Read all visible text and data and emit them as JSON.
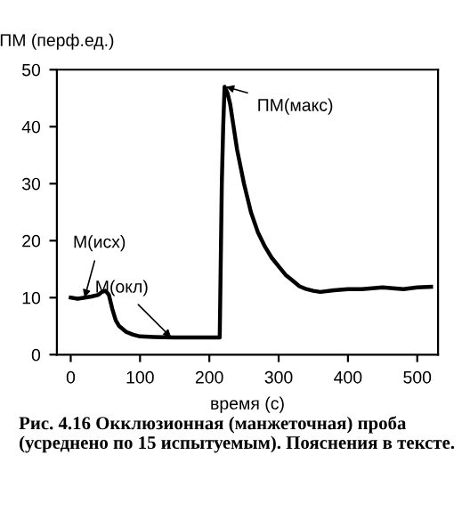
{
  "chart_data": {
    "type": "line",
    "xlabel": "время (с)",
    "ylabel": "ПМ (перф.ед.)",
    "x": [
      0,
      10,
      20,
      30,
      40,
      45,
      50,
      55,
      60,
      65,
      70,
      80,
      90,
      100,
      120,
      150,
      180,
      210,
      215,
      218,
      220,
      222,
      226,
      230,
      235,
      240,
      250,
      260,
      270,
      280,
      290,
      300,
      310,
      320,
      330,
      340,
      350,
      360,
      380,
      400,
      420,
      450,
      480,
      500,
      520
    ],
    "series": [
      {
        "color": "#000000",
        "values": [
          10,
          9.8,
          10,
          10.2,
          10.5,
          11,
          11.2,
          10.5,
          8,
          6,
          5,
          4,
          3.5,
          3.2,
          3.1,
          3,
          3,
          3,
          3,
          30,
          40,
          47,
          46,
          44,
          40,
          36,
          30,
          25,
          21.5,
          19,
          17,
          15.5,
          14,
          13,
          12,
          11.5,
          11.2,
          11,
          11.3,
          11.5,
          11.5,
          11.8,
          11.5,
          11.8,
          11.9
        ]
      }
    ],
    "xlim": [
      -20,
      530
    ],
    "ylim": [
      0,
      50
    ],
    "xticks": [
      0,
      100,
      200,
      300,
      400,
      500
    ],
    "yticks": [
      0,
      10,
      20,
      30,
      40,
      50
    ],
    "grid": false,
    "legend": false,
    "marker": "none",
    "line_style": "solid",
    "annotations": [
      {
        "text": "М(исх)",
        "x": 20,
        "y": 10
      },
      {
        "text": "М(окл)",
        "x": 145,
        "y": 3
      },
      {
        "text": "ПМ(макс)",
        "x": 224,
        "y": 47
      },
      "Рис. 4.16 Окклюзионная (манжеточная) проба (усреднено по 15 испытуемым). Пояснения в тексте."
    ]
  }
}
